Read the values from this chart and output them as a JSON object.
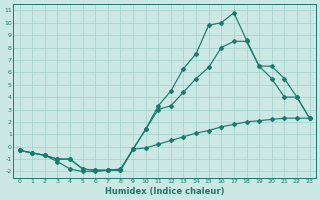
{
  "xlabel": "Humidex (Indice chaleur)",
  "bg_color": "#cce8e4",
  "grid_color": "#a8d4d0",
  "line_color": "#1a7a6e",
  "xlim": [
    -0.5,
    23.5
  ],
  "ylim": [
    -2.5,
    11.5
  ],
  "xticks": [
    0,
    1,
    2,
    3,
    4,
    5,
    6,
    7,
    8,
    9,
    10,
    11,
    12,
    13,
    14,
    15,
    16,
    17,
    18,
    19,
    20,
    21,
    22,
    23
  ],
  "yticks": [
    -2,
    -1,
    0,
    1,
    2,
    3,
    4,
    5,
    6,
    7,
    8,
    9,
    10,
    11
  ],
  "line_min_x": [
    0,
    1,
    2,
    3,
    4,
    5,
    6,
    7,
    8,
    9,
    10,
    11,
    12,
    13,
    14,
    15,
    16,
    17,
    18,
    19,
    20,
    21,
    22,
    23
  ],
  "line_min_y": [
    -0.3,
    -0.5,
    -0.7,
    -1.2,
    -1.8,
    -2.0,
    -2.0,
    -1.9,
    -1.8,
    -0.2,
    -0.1,
    0.2,
    0.5,
    0.8,
    1.1,
    1.3,
    1.6,
    1.8,
    2.0,
    2.1,
    2.2,
    2.3,
    2.3,
    2.3
  ],
  "line_avg_x": [
    0,
    1,
    2,
    3,
    4,
    5,
    6,
    7,
    8,
    9,
    10,
    11,
    12,
    13,
    14,
    15,
    16,
    17,
    18,
    19,
    20,
    21,
    22,
    23
  ],
  "line_avg_y": [
    -0.3,
    -0.5,
    -0.7,
    -1.0,
    -1.0,
    -1.8,
    -1.9,
    -1.9,
    -1.9,
    -0.2,
    1.4,
    3.0,
    3.3,
    4.4,
    5.5,
    6.4,
    8.0,
    8.5,
    8.5,
    6.5,
    6.5,
    5.5,
    4.0,
    2.3
  ],
  "line_max_x": [
    0,
    1,
    2,
    3,
    4,
    5,
    6,
    7,
    8,
    9,
    10,
    11,
    12,
    13,
    14,
    15,
    16,
    17,
    18,
    19,
    20,
    21,
    22,
    23
  ],
  "line_max_y": [
    -0.3,
    -0.5,
    -0.7,
    -1.0,
    -1.0,
    -1.8,
    -1.9,
    -1.9,
    -1.9,
    -0.2,
    1.4,
    3.3,
    4.5,
    6.3,
    7.5,
    9.8,
    10.0,
    10.8,
    8.6,
    6.5,
    5.5,
    4.0,
    4.0,
    2.3
  ]
}
